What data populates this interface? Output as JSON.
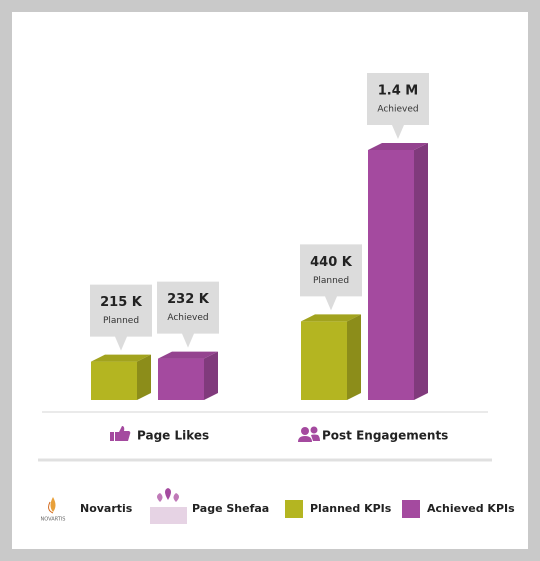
{
  "chart_data": {
    "type": "bar",
    "categories": [
      "Page Likes",
      "Post Engagements"
    ],
    "series": [
      {
        "name": "Planned KPIs",
        "callout_label": "Planned",
        "color": "#b4b521",
        "values": [
          215000,
          440000
        ],
        "value_labels": [
          "215 K",
          "440 K"
        ]
      },
      {
        "name": "Achieved KPIs",
        "callout_label": "Achieved",
        "color": "#a44a9f",
        "values": [
          232000,
          1400000
        ],
        "value_labels": [
          "232 K",
          "1.4 M"
        ]
      }
    ],
    "brands": [
      "Novartis",
      "Page Shefaa"
    ]
  }
}
